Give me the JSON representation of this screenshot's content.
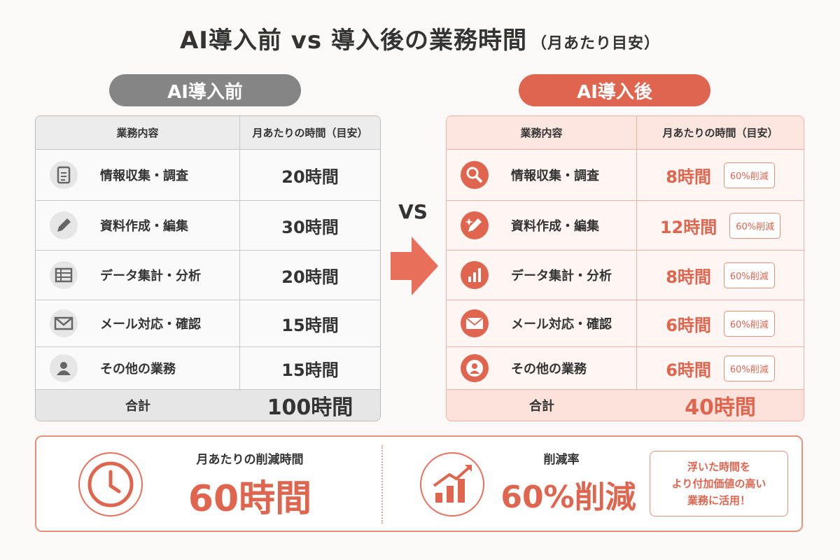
{
  "title": "AI導入前 vs 導入後の業務時間",
  "title_note": "（月あたり目安）",
  "before": {
    "label": "AI導入前",
    "headers": [
      "業務内容",
      "月あたりの時間（目安）"
    ],
    "rows": [
      [
        "情報収集・調査",
        "20時間"
      ],
      [
        "資料作成・編集",
        "30時間"
      ],
      [
        "データ集計・分析",
        "20時間"
      ],
      [
        "メール対応・確認",
        "15時間"
      ],
      [
        "その他の業務",
        "15時間"
      ]
    ],
    "total_label": "合計",
    "total": "100時間"
  },
  "vs": "VS",
  "after": {
    "label": "AI導入後",
    "headers": [
      "業務内容",
      "月あたりの時間（目安）"
    ],
    "rows": [
      [
        "情報収集・調査",
        "8時間",
        "60%削減"
      ],
      [
        "資料作成・編集",
        "12時間",
        "60%削減"
      ],
      [
        "データ集計・分析",
        "8時間",
        "60%削減"
      ],
      [
        "メール対応・確認",
        "6時間",
        "60%削減"
      ],
      [
        "その他の業務",
        "6時間",
        "60%削減"
      ]
    ],
    "total_label": "合計",
    "total": "40時間"
  },
  "summary": {
    "reduction_label": "月あたりの削減時間",
    "reduction": "60時間",
    "rate_label": "削減率",
    "rate": "60%削減",
    "note": [
      "浮いた時間を",
      "より付加価値の高い",
      "業務に活用！"
    ]
  }
}
